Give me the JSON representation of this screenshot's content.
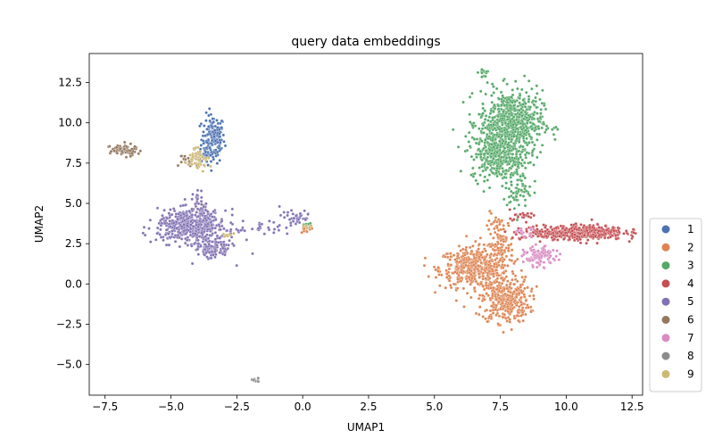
{
  "chart_data": {
    "type": "scatter",
    "title": "query data embeddings",
    "xlabel": "UMAP1",
    "ylabel": "UMAP2",
    "xlim": [
      -8.1,
      12.9
    ],
    "ylim": [
      -6.9,
      14.3
    ],
    "xticks": [
      -7.5,
      -5.0,
      -2.5,
      0.0,
      2.5,
      5.0,
      7.5,
      10.0,
      12.5
    ],
    "yticks": [
      -5.0,
      -2.5,
      0.0,
      2.5,
      5.0,
      7.5,
      10.0,
      12.5
    ],
    "xtick_labels": [
      "−7.5",
      "−5.0",
      "−2.5",
      "0.0",
      "2.5",
      "5.0",
      "7.5",
      "10.0",
      "12.5"
    ],
    "ytick_labels": [
      "−5.0",
      "−2.5",
      "0.0",
      "2.5",
      "5.0",
      "7.5",
      "10.0",
      "12.5"
    ],
    "grid": false,
    "legend_position": "outside right, lower",
    "series": [
      {
        "name": "1",
        "color": "#4c72b0",
        "clusters": [
          {
            "center": [
              -3.4,
              9.0
            ],
            "spread": [
              0.22,
              0.75
            ],
            "n": 160
          },
          {
            "center": [
              -3.7,
              8.0
            ],
            "spread": [
              0.12,
              0.3
            ],
            "n": 20
          }
        ]
      },
      {
        "name": "2",
        "color": "#dd8452",
        "clusters": [
          {
            "center": [
              6.5,
              1.0
            ],
            "spread": [
              0.65,
              0.6
            ],
            "n": 450
          },
          {
            "center": [
              7.7,
              -1.0
            ],
            "spread": [
              0.45,
              0.7
            ],
            "n": 350
          },
          {
            "center": [
              7.5,
              2.5
            ],
            "spread": [
              0.25,
              0.9
            ],
            "n": 120
          },
          {
            "center": [
              0.1,
              3.4
            ],
            "spread": [
              0.15,
              0.1
            ],
            "n": 12
          }
        ]
      },
      {
        "name": "3",
        "color": "#55a868",
        "clusters": [
          {
            "center": [
              7.9,
              10.0
            ],
            "spread": [
              0.6,
              1.0
            ],
            "n": 650
          },
          {
            "center": [
              7.4,
              8.0
            ],
            "spread": [
              0.5,
              0.75
            ],
            "n": 320
          },
          {
            "center": [
              8.1,
              6.0
            ],
            "spread": [
              0.25,
              0.8
            ],
            "n": 80
          },
          {
            "center": [
              6.85,
              13.1
            ],
            "spread": [
              0.1,
              0.2
            ],
            "n": 14
          },
          {
            "center": [
              0.2,
              3.7
            ],
            "spread": [
              0.1,
              0.08
            ],
            "n": 6
          }
        ]
      },
      {
        "name": "4",
        "color": "#c44e52",
        "clusters": [
          {
            "center": [
              10.7,
              3.2
            ],
            "spread": [
              0.75,
              0.22
            ],
            "n": 420
          },
          {
            "center": [
              9.0,
              3.1
            ],
            "spread": [
              0.55,
              0.25
            ],
            "n": 70
          },
          {
            "center": [
              8.3,
              4.3
            ],
            "spread": [
              0.3,
              0.15
            ],
            "n": 20
          }
        ]
      },
      {
        "name": "5",
        "color": "#8172b3",
        "clusters": [
          {
            "center": [
              -4.2,
              3.6
            ],
            "spread": [
              0.65,
              0.5
            ],
            "n": 500
          },
          {
            "center": [
              -3.4,
              2.2
            ],
            "spread": [
              0.35,
              0.35
            ],
            "n": 120
          },
          {
            "center": [
              -3.9,
              5.0
            ],
            "spread": [
              0.12,
              0.35
            ],
            "n": 25
          },
          {
            "center": [
              -0.4,
              4.1
            ],
            "spread": [
              0.45,
              0.35
            ],
            "n": 45
          },
          {
            "center": [
              -1.6,
              3.4
            ],
            "spread": [
              0.5,
              0.12
            ],
            "n": 20
          }
        ]
      },
      {
        "name": "6",
        "color": "#937860",
        "clusters": [
          {
            "center": [
              -6.8,
              8.3
            ],
            "spread": [
              0.25,
              0.18
            ],
            "n": 80
          },
          {
            "center": [
              -4.3,
              7.7
            ],
            "spread": [
              0.22,
              0.2
            ],
            "n": 25
          }
        ]
      },
      {
        "name": "7",
        "color": "#da8bc3",
        "clusters": [
          {
            "center": [
              9.0,
              1.7
            ],
            "spread": [
              0.3,
              0.3
            ],
            "n": 110
          },
          {
            "center": [
              8.4,
              3.2
            ],
            "spread": [
              0.25,
              0.15
            ],
            "n": 15
          }
        ]
      },
      {
        "name": "8",
        "color": "#8c8c8c",
        "clusters": [
          {
            "center": [
              -1.8,
              -5.95
            ],
            "spread": [
              0.12,
              0.06
            ],
            "n": 10
          }
        ]
      },
      {
        "name": "9",
        "color": "#ccb974",
        "clusters": [
          {
            "center": [
              -3.95,
              7.8
            ],
            "spread": [
              0.2,
              0.35
            ],
            "n": 50
          },
          {
            "center": [
              -2.9,
              3.1
            ],
            "spread": [
              0.12,
              0.1
            ],
            "n": 8
          },
          {
            "center": [
              0.2,
              3.5
            ],
            "spread": [
              0.08,
              0.08
            ],
            "n": 5
          }
        ]
      }
    ]
  }
}
